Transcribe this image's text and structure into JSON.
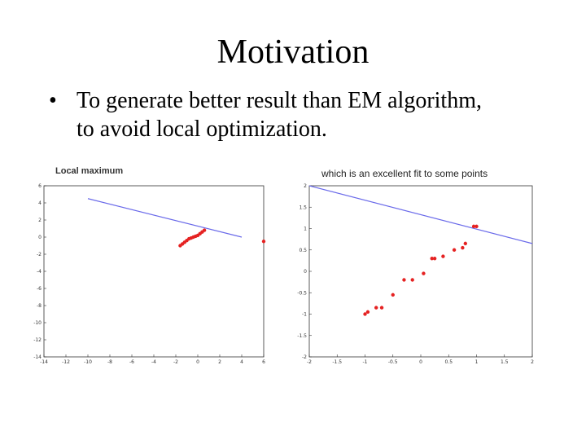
{
  "slide": {
    "title": "Motivation",
    "bullet_symbol": "•",
    "bullet_lines": [
      "To generate better result than EM algorithm,",
      "to avoid local optimization."
    ]
  },
  "colors": {
    "fit_line": "#6a6aea",
    "points": "#e52222",
    "axis": "#333333"
  },
  "chart_data": [
    {
      "type": "scatter",
      "title": "Local maximum",
      "xlim": [
        -14,
        6
      ],
      "ylim": [
        -14,
        6
      ],
      "xticks": [
        "-14",
        "-12",
        "-10",
        "-8",
        "-6",
        "-4",
        "-2",
        "0",
        "2",
        "4",
        "6"
      ],
      "yticks": [
        "6",
        "4",
        "2",
        "0",
        "-2",
        "-4",
        "-6",
        "-8",
        "-10",
        "-12",
        "-14"
      ],
      "fit_line": {
        "x": [
          -10,
          4
        ],
        "y": [
          4.5,
          0
        ]
      },
      "points": [
        {
          "x": -1.6,
          "y": -1.0
        },
        {
          "x": -1.4,
          "y": -0.8
        },
        {
          "x": -1.2,
          "y": -0.6
        },
        {
          "x": -1.0,
          "y": -0.4
        },
        {
          "x": -0.8,
          "y": -0.2
        },
        {
          "x": -0.6,
          "y": -0.1
        },
        {
          "x": -0.4,
          "y": 0.0
        },
        {
          "x": -0.2,
          "y": 0.1
        },
        {
          "x": 0.0,
          "y": 0.2
        },
        {
          "x": 0.2,
          "y": 0.4
        },
        {
          "x": 0.4,
          "y": 0.6
        },
        {
          "x": 0.6,
          "y": 0.8
        },
        {
          "x": 6.0,
          "y": -0.5
        }
      ]
    },
    {
      "type": "scatter",
      "title": "which is an excellent fit to some points",
      "xlim": [
        -2,
        2
      ],
      "ylim": [
        -2,
        2
      ],
      "xticks": [
        "-2",
        "-1.5",
        "-1",
        "-0.5",
        "0",
        "0.5",
        "1",
        "1.5",
        "2"
      ],
      "yticks": [
        "2",
        "1.5",
        "1",
        "0.5",
        "0",
        "-0.5",
        "-1",
        "-1.5",
        "-2"
      ],
      "fit_line": {
        "x": [
          -2,
          2
        ],
        "y": [
          2.0,
          0.65
        ]
      },
      "points": [
        {
          "x": -1.0,
          "y": -1.0
        },
        {
          "x": -0.95,
          "y": -0.95
        },
        {
          "x": -0.8,
          "y": -0.85
        },
        {
          "x": -0.7,
          "y": -0.85
        },
        {
          "x": -0.5,
          "y": -0.55
        },
        {
          "x": -0.3,
          "y": -0.2
        },
        {
          "x": -0.15,
          "y": -0.2
        },
        {
          "x": 0.05,
          "y": -0.05
        },
        {
          "x": 0.2,
          "y": 0.3
        },
        {
          "x": 0.25,
          "y": 0.3
        },
        {
          "x": 0.4,
          "y": 0.35
        },
        {
          "x": 0.6,
          "y": 0.5
        },
        {
          "x": 0.75,
          "y": 0.55
        },
        {
          "x": 0.8,
          "y": 0.65
        },
        {
          "x": 0.95,
          "y": 1.05
        },
        {
          "x": 1.0,
          "y": 1.05
        }
      ]
    }
  ]
}
